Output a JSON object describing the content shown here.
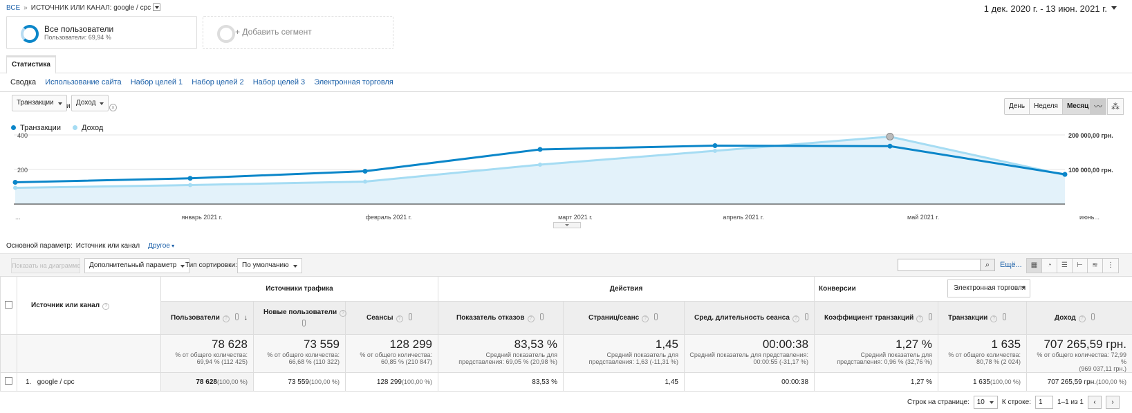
{
  "breadcrumb": {
    "all": "ВСЕ",
    "sep": "»",
    "current": "ИСТОЧНИК ИЛИ КАНАЛ: google / cpc"
  },
  "date_range": "1 дек. 2020 г. - 13 июн. 2021 г.",
  "segments": [
    {
      "title": "Все пользователи",
      "subtitle": "Пользователи: 69,94 %"
    },
    {
      "title": "+ Добавить сегмент"
    }
  ],
  "tab": "Статистика",
  "subtabs": [
    "Сводка",
    "Использование сайта",
    "Набор целей 1",
    "Набор целей 2",
    "Набор целей 3",
    "Электронная торговля"
  ],
  "metric_selectors": {
    "first": "Транзакции",
    "and": "и",
    "second": "Доход"
  },
  "period_buttons": [
    "День",
    "Неделя",
    "Месяц"
  ],
  "legend": [
    {
      "name": "Транзакции",
      "color": "#0b86c9"
    },
    {
      "name": "Доход",
      "color": "#a5dcf3"
    }
  ],
  "chart_data": {
    "type": "line",
    "x": [
      "...",
      "январь 2021 г.",
      "февраль 2021 г.",
      "март 2021 г.",
      "апрель 2021 г.",
      "май 2021 г.",
      "июнь..."
    ],
    "left_axis_ticks": [
      "400",
      "200"
    ],
    "right_axis_ticks": [
      "200 000,00 грн.",
      "100 000,00 грн."
    ],
    "series": [
      {
        "name": "Транзакции",
        "axis": "left",
        "color": "#0b86c9",
        "values": [
          126,
          149,
          190,
          316,
          338,
          335,
          172
        ]
      },
      {
        "name": "Доход",
        "axis": "right",
        "color": "#a5dcf3",
        "values": [
          47000,
          55000,
          65000,
          114000,
          154000,
          195000,
          84000
        ]
      }
    ],
    "ylim_left": [
      0,
      400
    ],
    "ylim_right": [
      0,
      200000
    ]
  },
  "primary_dimension": {
    "label": "Основной параметр:",
    "value": "Источник или канал",
    "other": "Другое"
  },
  "toolbar": {
    "plot_rows": "Показать на диаграмме",
    "secondary": "Дополнительный параметр",
    "sort_label": "Тип сортировки:",
    "sort_value": "По умолчанию",
    "more": "Ещё..."
  },
  "table": {
    "dimension_header": "Источник или канал",
    "groups": [
      "Источники трафика",
      "Действия",
      "Конверсии"
    ],
    "conversion_select": "Электронная торговля",
    "columns": [
      "Пользователи",
      "Новые пользователи",
      "Сеансы",
      "Показатель отказов",
      "Страниц/сеанс",
      "Сред. длительность сеанса",
      "Коэффициент транзакций",
      "Транзакции",
      "Доход"
    ],
    "totals": [
      {
        "value": "78 628",
        "sub1": "% от общего количества:",
        "sub2": "69,94 % (112 425)"
      },
      {
        "value": "73 559",
        "sub1": "% от общего количества:",
        "sub2": "66,68 % (110 322)"
      },
      {
        "value": "128 299",
        "sub1": "% от общего количества:",
        "sub2": "60,85 % (210 847)"
      },
      {
        "value": "83,53 %",
        "sub1": "Средний показатель для",
        "sub2": "представления: 69,05 % (20,98 %)"
      },
      {
        "value": "1,45",
        "sub1": "Средний показатель для",
        "sub2": "представления: 1,63 (-11,31 %)"
      },
      {
        "value": "00:00:38",
        "sub1": "Средний показатель для представления:",
        "sub2": "00:00:55 (-31,17 %)"
      },
      {
        "value": "1,27 %",
        "sub1": "Средний показатель для",
        "sub2": "представления: 0,96 % (32,76 %)"
      },
      {
        "value": "1 635",
        "sub1": "% от общего количества:",
        "sub2": "80,78 % (2 024)"
      },
      {
        "value": "707 265,59 грн.",
        "sub1": "% от общего количества: 72,99 %",
        "sub2": "(969 037,11 грн.)"
      }
    ],
    "rows": [
      {
        "index": "1.",
        "name": "google / cpc",
        "cells": [
          {
            "v": "78 628",
            "p": "(100,00 %)"
          },
          {
            "v": "73 559",
            "p": "(100,00 %)"
          },
          {
            "v": "128 299",
            "p": "(100,00 %)"
          },
          {
            "v": "83,53 %",
            "p": ""
          },
          {
            "v": "1,45",
            "p": ""
          },
          {
            "v": "00:00:38",
            "p": ""
          },
          {
            "v": "1,27 %",
            "p": ""
          },
          {
            "v": "1 635",
            "p": "(100,00 %)"
          },
          {
            "v": "707 265,59 грн.",
            "p": "(100,00 %)"
          }
        ]
      }
    ]
  },
  "pager": {
    "rows_label": "Строк на странице:",
    "rows_value": "10",
    "goto_label": "К строке:",
    "goto_value": "1",
    "range": "1–1 из 1"
  }
}
